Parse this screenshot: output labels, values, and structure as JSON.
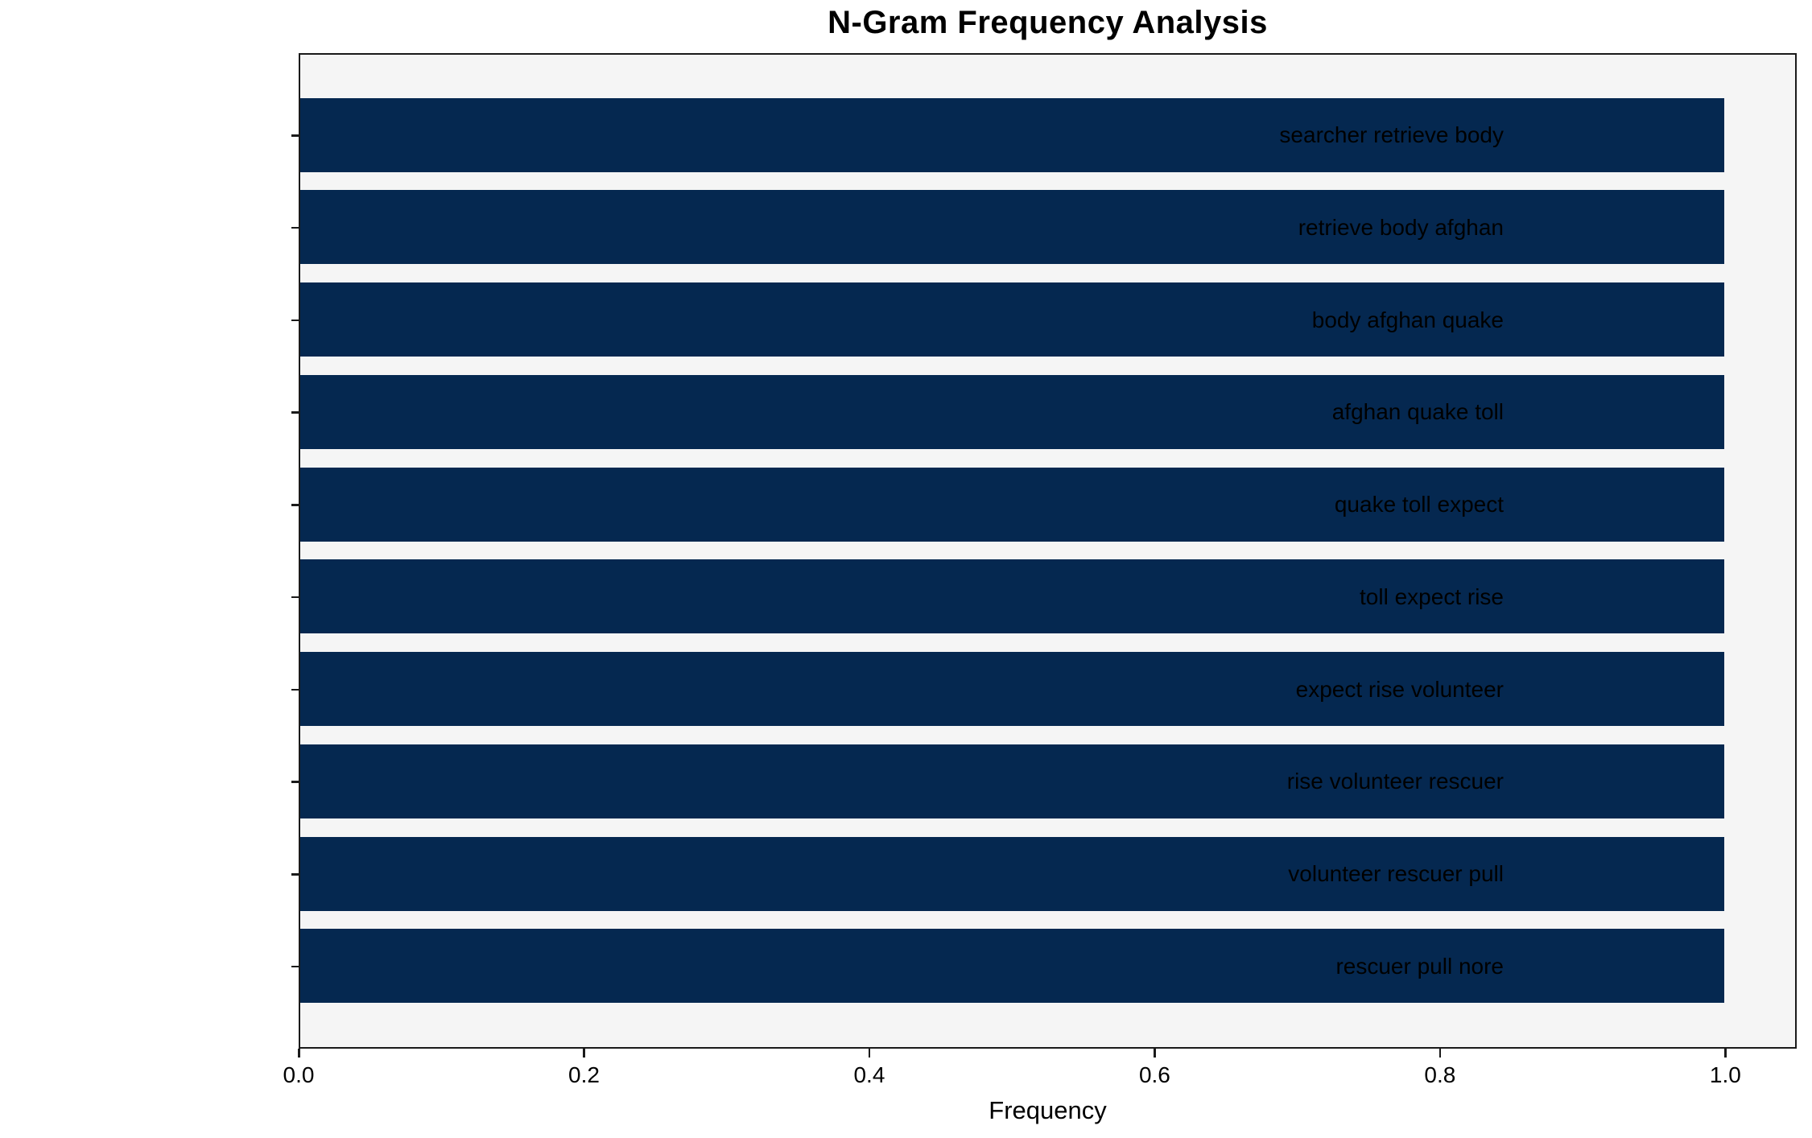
{
  "chart_data": {
    "type": "bar",
    "orientation": "horizontal",
    "title": "N-Gram Frequency Analysis",
    "xlabel": "Frequency",
    "ylabel": "",
    "categories": [
      "searcher retrieve body",
      "retrieve body afghan",
      "body afghan quake",
      "afghan quake toll",
      "quake toll expect",
      "toll expect rise",
      "expect rise volunteer",
      "rise volunteer rescuer",
      "volunteer rescuer pull",
      "rescuer pull nore"
    ],
    "values": [
      1.0,
      1.0,
      1.0,
      1.0,
      1.0,
      1.0,
      1.0,
      1.0,
      1.0,
      1.0
    ],
    "xlim": [
      0,
      1.05
    ],
    "xticks": [
      0.0,
      0.2,
      0.4,
      0.6,
      0.8,
      1.0
    ],
    "xtick_labels": [
      "0.0",
      "0.2",
      "0.4",
      "0.6",
      "0.8",
      "1.0"
    ],
    "grid": false,
    "legend_position": "none",
    "colors": {
      "bar": "#052850",
      "plot_background": "#f5f5f5",
      "figure_background": "#ffffff",
      "spine": "#1a1a1a",
      "text": "#000000"
    }
  }
}
